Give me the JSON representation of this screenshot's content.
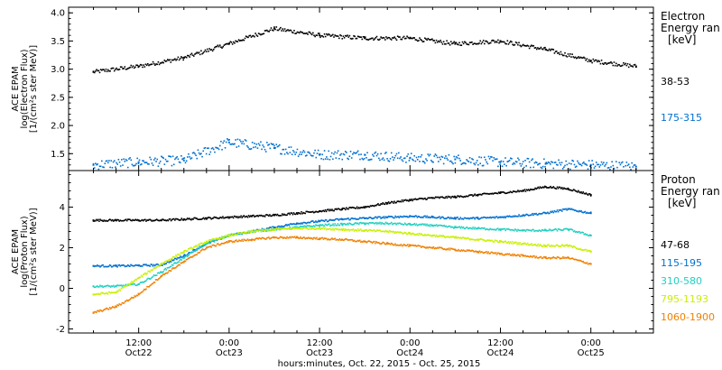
{
  "chart_data": [
    {
      "type": "scatter",
      "title": "",
      "ylabel_lines": [
        "ACE EPAM",
        "log(Electron Flux)",
        "[1/(cm²s ster MeV)]"
      ],
      "ylim": [
        1.2,
        4.1
      ],
      "yticks": [
        1.5,
        2.0,
        2.5,
        3.0,
        3.5,
        4.0
      ],
      "ytick_labels": [
        "1.5",
        "2.0",
        "2.5",
        "3.0",
        "3.5",
        "4.0"
      ],
      "legend": {
        "placement": "right",
        "title_lines": [
          "Electron",
          "Energy ran",
          "[keV]"
        ]
      },
      "x_hours": [
        0,
        6,
        12,
        18,
        24,
        30,
        36,
        42,
        48,
        54,
        60,
        66,
        72
      ],
      "series": [
        {
          "name": "38-53",
          "color": "#000000",
          "values": [
            2.95,
            3.05,
            3.2,
            3.45,
            3.72,
            3.6,
            3.55,
            3.55,
            3.45,
            3.5,
            3.35,
            3.15,
            3.05
          ]
        },
        {
          "name": "175-315",
          "color": "#0070d0",
          "values": [
            1.3,
            1.35,
            1.38,
            1.7,
            1.6,
            1.48,
            1.48,
            1.42,
            1.4,
            1.35,
            1.32,
            1.3,
            1.27
          ]
        }
      ]
    },
    {
      "type": "scatter",
      "title": "",
      "ylabel_lines": [
        "ACE EPAM",
        "log(Proton Flux)",
        "[1/(cm²s ster MeV)]"
      ],
      "ylim": [
        -2.2,
        5.8
      ],
      "yticks": [
        -2,
        0,
        2,
        4
      ],
      "ytick_labels": [
        "-2",
        "0",
        "2",
        "4"
      ],
      "xlabel": "hours:minutes, Oct. 22, 2015 - Oct. 25, 2015",
      "xlim_hours": [
        0,
        72
      ],
      "xticks": [
        {
          "hour": 6,
          "time": "12:00",
          "date": "Oct22"
        },
        {
          "hour": 18,
          "time": "0:00",
          "date": "Oct23"
        },
        {
          "hour": 30,
          "time": "12:00",
          "date": "Oct23"
        },
        {
          "hour": 42,
          "time": "0:00",
          "date": "Oct24"
        },
        {
          "hour": 54,
          "time": "12:00",
          "date": "Oct24"
        },
        {
          "hour": 66,
          "time": "0:00",
          "date": "Oct25"
        }
      ],
      "legend": {
        "placement": "right",
        "title_lines": [
          "Proton",
          "Energy ran",
          "[keV]"
        ]
      },
      "x_hours": [
        0,
        3,
        6,
        9,
        12,
        15,
        18,
        21,
        24,
        27,
        30,
        33,
        36,
        39,
        42,
        45,
        48,
        51,
        54,
        57,
        60,
        63,
        66
      ],
      "series": [
        {
          "name": "47-68",
          "color": "#000000",
          "values": [
            3.35,
            3.35,
            3.35,
            3.35,
            3.4,
            3.45,
            3.5,
            3.55,
            3.6,
            3.7,
            3.8,
            3.9,
            4.0,
            4.2,
            4.35,
            4.45,
            4.5,
            4.6,
            4.7,
            4.8,
            5.0,
            4.9,
            4.6
          ]
        },
        {
          "name": "115-195",
          "color": "#0070d0",
          "values": [
            1.1,
            1.1,
            1.12,
            1.15,
            1.6,
            2.2,
            2.6,
            2.8,
            3.0,
            3.2,
            3.3,
            3.4,
            3.45,
            3.5,
            3.55,
            3.5,
            3.45,
            3.45,
            3.5,
            3.6,
            3.7,
            3.9,
            3.7
          ]
        },
        {
          "name": "310-580",
          "color": "#20d0c0",
          "values": [
            0.1,
            0.1,
            0.2,
            0.8,
            1.5,
            2.2,
            2.6,
            2.8,
            2.9,
            3.0,
            3.1,
            3.15,
            3.2,
            3.2,
            3.15,
            3.1,
            3.0,
            2.95,
            2.9,
            2.85,
            2.85,
            2.9,
            2.6
          ]
        },
        {
          "name": "795-1193",
          "color": "#c8f000",
          "values": [
            -0.3,
            -0.2,
            0.5,
            1.2,
            1.8,
            2.3,
            2.6,
            2.8,
            2.9,
            2.95,
            2.95,
            2.9,
            2.85,
            2.8,
            2.7,
            2.6,
            2.5,
            2.4,
            2.3,
            2.2,
            2.1,
            2.1,
            1.8
          ]
        },
        {
          "name": "1060-1900",
          "color": "#f08000",
          "values": [
            -1.2,
            -0.9,
            -0.3,
            0.6,
            1.3,
            2.0,
            2.3,
            2.4,
            2.5,
            2.5,
            2.45,
            2.4,
            2.3,
            2.2,
            2.1,
            2.0,
            1.9,
            1.8,
            1.7,
            1.6,
            1.5,
            1.5,
            1.2
          ]
        }
      ]
    }
  ]
}
